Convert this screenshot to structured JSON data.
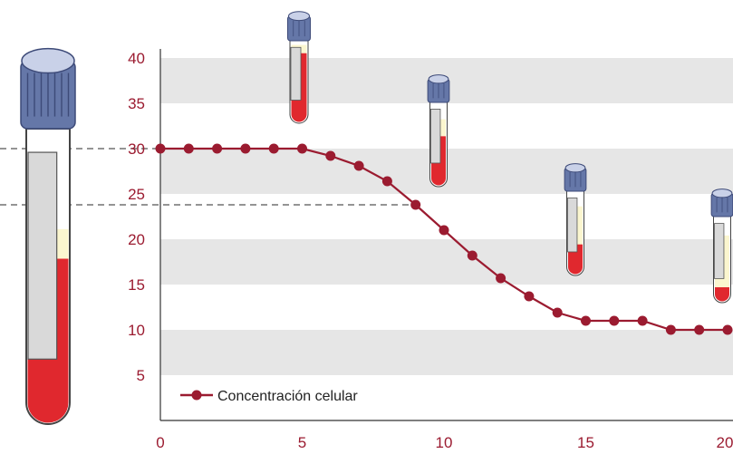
{
  "chart_data": {
    "type": "line",
    "title": "",
    "xlabel": "",
    "ylabel": "",
    "xlim": [
      0,
      20
    ],
    "ylim": [
      0,
      40
    ],
    "x_ticks": [
      "0",
      "5",
      "10",
      "15",
      "20"
    ],
    "y_ticks": [
      "5",
      "10",
      "15",
      "20",
      "25",
      "30",
      "35",
      "40"
    ],
    "grid": "horizontal alternating bands",
    "legend_position": "bottom-left",
    "series": [
      {
        "name": "Concentración celular",
        "color": "#9b1b30",
        "x": [
          0,
          1,
          2,
          3,
          4,
          5,
          6,
          7,
          8,
          9,
          10,
          11,
          12,
          13,
          14,
          15,
          16,
          17,
          18,
          19,
          20
        ],
        "y": [
          30,
          30,
          30,
          30,
          30,
          30,
          29.2,
          28.1,
          26.4,
          23.8,
          21.0,
          18.2,
          15.7,
          13.7,
          11.9,
          11.0,
          11.0,
          11.0,
          10.0,
          10.0,
          10.0
        ]
      }
    ],
    "reference_lines": [
      30,
      23.8
    ],
    "colors": {
      "accent": "#9b1b30",
      "band": "#e6e6e6",
      "blood": "#e0282e",
      "plasma": "#fbf6cf",
      "cap": "#6577a8"
    }
  },
  "illustrations": [
    {
      "name": "large-tube-icon",
      "blood_fraction": 0.56
    },
    {
      "name": "tube-at-5-icon",
      "blood_fraction": 0.85
    },
    {
      "name": "tube-at-10-icon",
      "blood_fraction": 0.6
    },
    {
      "name": "tube-at-15-icon",
      "blood_fraction": 0.37
    },
    {
      "name": "tube-at-20-icon",
      "blood_fraction": 0.18
    }
  ]
}
